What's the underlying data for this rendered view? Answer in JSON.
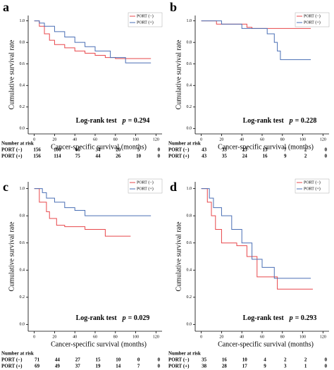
{
  "chart_data": [
    {
      "type": "line",
      "panel_label": "a",
      "xlabel": "Cancer-specific survival (months)",
      "ylabel": "Cumulative survival rate",
      "annotation": "Log-rank test",
      "stat_label": "p",
      "stat_value": "= 0.294",
      "legend": "upper right",
      "xlim": [
        -6,
        126
      ],
      "xticks": [
        0,
        20,
        40,
        60,
        80,
        100,
        120
      ],
      "ylim": [
        -0.05,
        1.05
      ],
      "yticks": [
        {
          "value": 0,
          "label": "0.0"
        },
        {
          "value": 0.2,
          "label": "0.2"
        },
        {
          "value": 0.4,
          "label": "0.4"
        },
        {
          "value": 0.6,
          "label": "0.6"
        },
        {
          "value": 0.8,
          "label": "0.8"
        },
        {
          "value": 1,
          "label": "1.0"
        }
      ],
      "series": [
        {
          "name": "PORT (−)",
          "color": "#e8474b",
          "x": [
            0,
            5,
            10,
            15,
            20,
            30,
            40,
            50,
            60,
            70,
            80,
            115
          ],
          "values": [
            1,
            0.95,
            0.88,
            0.82,
            0.78,
            0.75,
            0.72,
            0.7,
            0.68,
            0.66,
            0.65,
            0.65
          ]
        },
        {
          "name": "PORT (+)",
          "color": "#4a6fb5",
          "x": [
            0,
            5,
            10,
            20,
            30,
            40,
            50,
            60,
            75,
            90,
            115
          ],
          "values": [
            1,
            0.98,
            0.95,
            0.9,
            0.85,
            0.8,
            0.76,
            0.72,
            0.66,
            0.61,
            0.61
          ]
        }
      ],
      "risk_table": {
        "title": "Number at risk",
        "rows": [
          {
            "label": "PORT (−)",
            "values": [
              156,
              100,
              66,
              34,
              20,
              5,
              0
            ]
          },
          {
            "label": "PORT (+)",
            "values": [
              156,
              114,
              75,
              44,
              26,
              10,
              0
            ]
          }
        ]
      }
    },
    {
      "type": "line",
      "panel_label": "b",
      "xlabel": "Cancer-specific survival (months)",
      "ylabel": "Cumulative survival rate",
      "annotation": "Log-rank test",
      "stat_label": "p",
      "stat_value": "= 0.228",
      "legend": "upper right",
      "xlim": [
        -6,
        126
      ],
      "xticks": [
        0,
        20,
        40,
        60,
        80,
        100,
        120
      ],
      "ylim": [
        -0.05,
        1.05
      ],
      "yticks": [
        {
          "value": 0,
          "label": "0.0"
        },
        {
          "value": 0.2,
          "label": "0.2"
        },
        {
          "value": 0.4,
          "label": "0.4"
        },
        {
          "value": 0.6,
          "label": "0.6"
        },
        {
          "value": 0.8,
          "label": "0.8"
        },
        {
          "value": 1,
          "label": "1.0"
        }
      ],
      "series": [
        {
          "name": "PORT (−)",
          "color": "#e8474b",
          "x": [
            0,
            15,
            45,
            50,
            108
          ],
          "values": [
            1,
            0.97,
            0.94,
            0.93,
            0.93
          ]
        },
        {
          "name": "PORT (+)",
          "color": "#4a6fb5",
          "x": [
            0,
            20,
            40,
            65,
            72,
            75,
            78,
            108
          ],
          "values": [
            1,
            0.97,
            0.93,
            0.88,
            0.8,
            0.72,
            0.64,
            0.64
          ]
        }
      ],
      "risk_table": {
        "title": "Number at risk",
        "rows": [
          {
            "label": "PORT (−)",
            "values": [
              43,
              33,
              23,
              13,
              7,
              2,
              0
            ]
          },
          {
            "label": "PORT (+)",
            "values": [
              43,
              35,
              24,
              16,
              9,
              2,
              0
            ]
          }
        ]
      }
    },
    {
      "type": "line",
      "panel_label": "c",
      "xlabel": "Cancer-specific survival (months)",
      "ylabel": "Cumulative survival rate",
      "annotation": "Log-rank test",
      "stat_label": "p",
      "stat_value": "= 0.029",
      "legend": "upper right",
      "xlim": [
        -6,
        126
      ],
      "xticks": [
        0,
        20,
        40,
        60,
        80,
        100,
        120
      ],
      "ylim": [
        -0.05,
        1.05
      ],
      "yticks": [
        {
          "value": 0,
          "label": "0.0"
        },
        {
          "value": 0.2,
          "label": "0.2"
        },
        {
          "value": 0.4,
          "label": "0.4"
        },
        {
          "value": 0.6,
          "label": "0.6"
        },
        {
          "value": 0.8,
          "label": "0.8"
        },
        {
          "value": 1,
          "label": "1.0"
        }
      ],
      "series": [
        {
          "name": "PORT (−)",
          "color": "#e8474b",
          "x": [
            0,
            5,
            12,
            15,
            22,
            30,
            50,
            70,
            95
          ],
          "values": [
            1,
            0.9,
            0.83,
            0.78,
            0.73,
            0.72,
            0.7,
            0.65,
            0.65
          ]
        },
        {
          "name": "PORT (+)",
          "color": "#4a6fb5",
          "x": [
            0,
            8,
            12,
            20,
            30,
            40,
            50,
            115
          ],
          "values": [
            1,
            0.97,
            0.93,
            0.9,
            0.86,
            0.84,
            0.8,
            0.8
          ]
        }
      ],
      "risk_table": {
        "title": "Number at risk",
        "rows": [
          {
            "label": "PORT (−)",
            "values": [
              71,
              44,
              27,
              15,
              10,
              0,
              0
            ]
          },
          {
            "label": "PORT (+)",
            "values": [
              69,
              49,
              37,
              19,
              14,
              7,
              0
            ]
          }
        ]
      }
    },
    {
      "type": "line",
      "panel_label": "d",
      "xlabel": "Cancer-specific survival (months)",
      "ylabel": "Cumulative survival rate",
      "annotation": "Log-rank test",
      "stat_label": "p",
      "stat_value": "= 0.293",
      "legend": "upper right",
      "xlim": [
        -6,
        126
      ],
      "xticks": [
        0,
        20,
        40,
        60,
        80,
        100,
        120
      ],
      "ylim": [
        -0.05,
        1.05
      ],
      "yticks": [
        {
          "value": 0,
          "label": "0.0"
        },
        {
          "value": 0.2,
          "label": "0.2"
        },
        {
          "value": 0.4,
          "label": "0.4"
        },
        {
          "value": 0.6,
          "label": "0.6"
        },
        {
          "value": 0.8,
          "label": "0.8"
        },
        {
          "value": 1,
          "label": "1.0"
        }
      ],
      "series": [
        {
          "name": "PORT (−)",
          "color": "#e8474b",
          "x": [
            0,
            6,
            10,
            14,
            20,
            35,
            45,
            55,
            75,
            110
          ],
          "values": [
            1,
            0.9,
            0.8,
            0.7,
            0.6,
            0.58,
            0.5,
            0.35,
            0.26,
            0.26
          ]
        },
        {
          "name": "PORT (+)",
          "color": "#4a6fb5",
          "x": [
            0,
            8,
            12,
            20,
            30,
            40,
            50,
            60,
            72,
            108
          ],
          "values": [
            1,
            0.93,
            0.86,
            0.8,
            0.7,
            0.6,
            0.48,
            0.42,
            0.34,
            0.34
          ]
        }
      ],
      "risk_table": {
        "title": "Number at risk",
        "rows": [
          {
            "label": "PORT (−)",
            "values": [
              35,
              16,
              10,
              4,
              2,
              2,
              0
            ]
          },
          {
            "label": "PORT (+)",
            "values": [
              38,
              28,
              17,
              9,
              3,
              1,
              0
            ]
          }
        ]
      }
    }
  ]
}
